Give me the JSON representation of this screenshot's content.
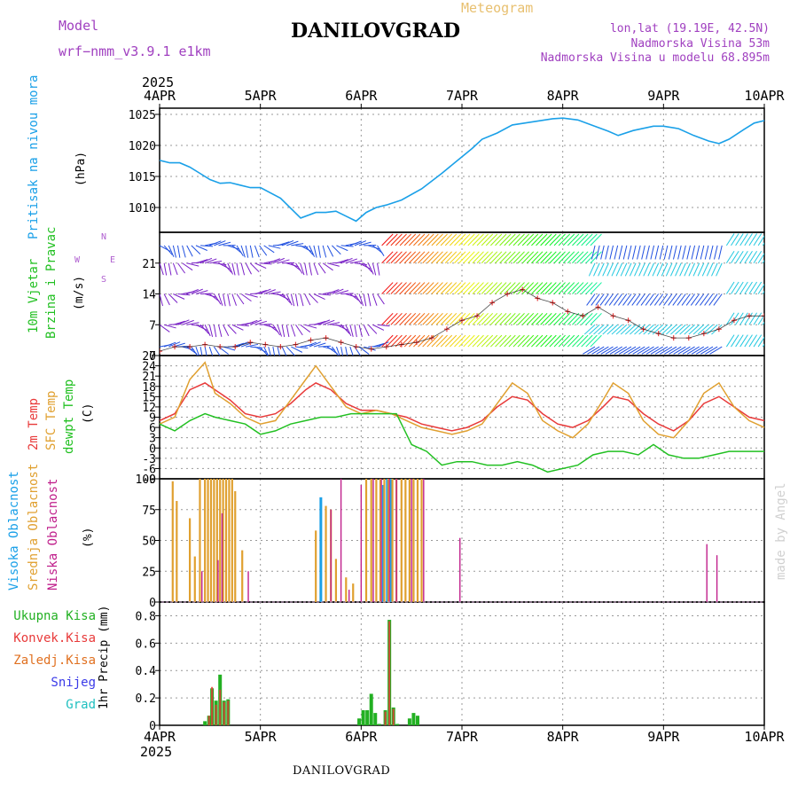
{
  "header": {
    "model_label": "Model",
    "model_name": "wrf−nmm_v3.9.1 e1km",
    "title": "DANILOVGRAD",
    "chart_kind": "Meteogram",
    "coords": "lon,lat (19.19E, 42.5N)",
    "elevation": "Nadmorska Visina 53m",
    "model_elevation": "Nadmorska Visina u modelu 68.895m",
    "year_top": "2025",
    "year_bottom": "2025",
    "footer_title": "DANILOVGRAD",
    "signature": "made by Angel"
  },
  "colors": {
    "pressure": "#1aa0e8",
    "t2m": "#e83a3a",
    "tsfc": "#e0a030",
    "dewpt": "#22c022",
    "high_cloud": "#1aa0e8",
    "mid_cloud": "#e0a030",
    "low_cloud": "#c0208c",
    "model": "#a040c0",
    "total_precip": "#22b022",
    "conv_precip": "#e83a3a",
    "frz_precip": "#e07020",
    "snow": "#3a3ae8",
    "graupel": "#20c0c0",
    "wind_low": "#7a20c8",
    "wind_mid": "#2050e0",
    "wind_high": "#20c8e0"
  },
  "panels": {
    "pressure": {
      "label": "Pritisak na nivou mora",
      "unit": "(hPa)"
    },
    "wind": {
      "label1": "10m Vjetar",
      "label2": "Brzina i Pravac",
      "unit": "(m/s)",
      "compass_n": "N",
      "compass_s": "S",
      "compass_w": "W",
      "compass_e": "E"
    },
    "temp": {
      "label1": "2m Temp",
      "label2": "SFC Temp",
      "label3": "dewpt Temp",
      "unit": "(C)"
    },
    "cloud": {
      "label1": "Visoka Oblacnost",
      "label2": "Srednja Oblacnost",
      "label3": "Niska Oblacnost",
      "unit": "(%)"
    },
    "precip": {
      "unit": "1hr Precip (mm)",
      "legend": [
        "Ukupna Kisa",
        "Konvek.Kisa",
        "Zaledj.Kisa",
        "Snijeg",
        "Grad"
      ]
    }
  },
  "chart_data": [
    {
      "type": "line",
      "title": "Pritisak na nivou mora",
      "ylabel": "(hPa)",
      "x_ticks": [
        "4APR",
        "5APR",
        "6APR",
        "7APR",
        "8APR",
        "9APR",
        "10APR"
      ],
      "ylim": [
        1006,
        1026
      ],
      "y_ticks": [
        1010,
        1015,
        1020,
        1025
      ],
      "grid": true,
      "series": [
        {
          "x": [
            0,
            0.1,
            0.2,
            0.3,
            0.4,
            0.5,
            0.6,
            0.7,
            0.8,
            0.9,
            1.0,
            1.2,
            1.4,
            1.55,
            1.65,
            1.75,
            1.85,
            1.95,
            2.05,
            2.15,
            2.25,
            2.4,
            2.6,
            2.8,
            2.95,
            3.1,
            3.2,
            3.35,
            3.5,
            3.7,
            3.9,
            4.0,
            4.15,
            4.3,
            4.45,
            4.55,
            4.7,
            4.9,
            5.0,
            5.15,
            5.3,
            5.45,
            5.55,
            5.65,
            5.8,
            5.9,
            6.0
          ],
          "values": [
            1017.6,
            1017.2,
            1017.2,
            1016.5,
            1015.5,
            1014.5,
            1013.9,
            1014.0,
            1013.6,
            1013.2,
            1013.2,
            1011.5,
            1008.3,
            1009.2,
            1009.2,
            1009.4,
            1008.6,
            1007.8,
            1009.2,
            1010.0,
            1010.4,
            1011.2,
            1013.0,
            1015.5,
            1017.5,
            1019.5,
            1021.0,
            1022.0,
            1023.3,
            1023.8,
            1024.3,
            1024.4,
            1024.1,
            1023.2,
            1022.3,
            1021.6,
            1022.4,
            1023.1,
            1023.1,
            1022.7,
            1021.6,
            1020.7,
            1020.3,
            1021.0,
            1022.6,
            1023.6,
            1024.0
          ]
        }
      ]
    },
    {
      "type": "scatter",
      "title": "10m Vjetar Brzina i Pravac",
      "ylabel": "(m/s)",
      "x_ticks": [
        "4APR",
        "5APR",
        "6APR",
        "7APR",
        "8APR",
        "9APR",
        "10APR"
      ],
      "ylim": [
        0,
        28
      ],
      "y_ticks": [
        0,
        7,
        14,
        21
      ],
      "grid": true,
      "series": [
        {
          "name": "wind speed",
          "x": [
            0,
            0.15,
            0.3,
            0.45,
            0.6,
            0.75,
            0.9,
            1.05,
            1.2,
            1.35,
            1.5,
            1.65,
            1.8,
            1.95,
            2.1,
            2.25,
            2.4,
            2.55,
            2.7,
            2.85,
            3.0,
            3.15,
            3.3,
            3.45,
            3.6,
            3.75,
            3.9,
            4.05,
            4.2,
            4.35,
            4.5,
            4.65,
            4.8,
            4.95,
            5.1,
            5.25,
            5.4,
            5.55,
            5.7,
            5.85,
            6.0
          ],
          "values": [
            1,
            2,
            2,
            2.5,
            2,
            2,
            3,
            2.5,
            2,
            2.5,
            3.5,
            4,
            3,
            2,
            1.5,
            2,
            2.5,
            3,
            4,
            6,
            8,
            9,
            12,
            14,
            15,
            13,
            12,
            10,
            9,
            11,
            9,
            8,
            6,
            5,
            4,
            4,
            5,
            6,
            8,
            9,
            9
          ]
        }
      ]
    },
    {
      "type": "line",
      "title": "2m Temp / SFC Temp / dewpt Temp",
      "ylabel": "(C)",
      "x_ticks": [
        "4APR",
        "5APR",
        "6APR",
        "7APR",
        "8APR",
        "9APR",
        "10APR"
      ],
      "ylim": [
        -9,
        27
      ],
      "y_ticks": [
        -9,
        -6,
        -3,
        0,
        3,
        6,
        9,
        12,
        15,
        18,
        21,
        24,
        27
      ],
      "grid": true,
      "series": [
        {
          "name": "2m Temp",
          "x": [
            0,
            0.15,
            0.3,
            0.45,
            0.55,
            0.7,
            0.85,
            1.0,
            1.15,
            1.3,
            1.45,
            1.55,
            1.7,
            1.85,
            2.0,
            2.15,
            2.3,
            2.45,
            2.6,
            2.75,
            2.9,
            3.05,
            3.2,
            3.35,
            3.5,
            3.65,
            3.8,
            3.95,
            4.1,
            4.25,
            4.4,
            4.5,
            4.65,
            4.8,
            4.95,
            5.1,
            5.25,
            5.4,
            5.55,
            5.7,
            5.85,
            6.0
          ],
          "values": [
            8,
            10,
            17,
            19,
            17,
            14,
            10,
            9,
            10,
            13,
            17,
            19,
            17,
            13,
            11,
            11,
            10,
            9,
            7,
            6,
            5,
            6,
            8,
            12,
            15,
            14,
            10,
            7,
            6,
            8,
            12,
            15,
            14,
            10,
            7,
            5,
            8,
            13,
            15,
            12,
            9,
            8
          ]
        },
        {
          "name": "SFC Temp",
          "x": [
            0,
            0.15,
            0.3,
            0.45,
            0.55,
            0.7,
            0.85,
            1.0,
            1.15,
            1.3,
            1.45,
            1.55,
            1.7,
            1.85,
            2.0,
            2.15,
            2.3,
            2.45,
            2.6,
            2.75,
            2.9,
            3.05,
            3.2,
            3.35,
            3.5,
            3.65,
            3.8,
            3.95,
            4.1,
            4.25,
            4.4,
            4.5,
            4.65,
            4.8,
            4.95,
            5.1,
            5.25,
            5.4,
            5.55,
            5.7,
            5.85,
            6.0
          ],
          "values": [
            7,
            9,
            20,
            25,
            16,
            13,
            9,
            7,
            8,
            14,
            20,
            24,
            18,
            12,
            10,
            11,
            10,
            8,
            6,
            5,
            4,
            5,
            7,
            13,
            19,
            16,
            8,
            5,
            3,
            7,
            14,
            19,
            16,
            8,
            4,
            3,
            8,
            16,
            19,
            12,
            8,
            6
          ]
        },
        {
          "name": "dewpt Temp",
          "x": [
            0,
            0.15,
            0.3,
            0.45,
            0.55,
            0.7,
            0.85,
            1.0,
            1.15,
            1.3,
            1.45,
            1.6,
            1.75,
            1.9,
            2.05,
            2.2,
            2.35,
            2.5,
            2.65,
            2.8,
            2.95,
            3.1,
            3.25,
            3.4,
            3.55,
            3.7,
            3.85,
            4.0,
            4.15,
            4.3,
            4.45,
            4.6,
            4.75,
            4.9,
            5.05,
            5.2,
            5.35,
            5.5,
            5.65,
            5.8,
            6.0
          ],
          "values": [
            7,
            5,
            8,
            10,
            9,
            8,
            7,
            4,
            5,
            7,
            8,
            9,
            9,
            10,
            10,
            10,
            10,
            1,
            -1,
            -5,
            -4,
            -4,
            -5,
            -5,
            -4,
            -5,
            -7,
            -6,
            -5,
            -2,
            -1,
            -1,
            -2,
            1,
            -2,
            -3,
            -3,
            -2,
            -1,
            -1,
            -1
          ]
        }
      ]
    },
    {
      "type": "bar",
      "title": "Visoka / Srednja / Niska Oblacnost",
      "ylabel": "(%)",
      "x_ticks": [
        "4APR",
        "5APR",
        "6APR",
        "7APR",
        "8APR",
        "9APR",
        "10APR"
      ],
      "ylim": [
        0,
        100
      ],
      "y_ticks": [
        0,
        25,
        50,
        75,
        100
      ],
      "grid": true,
      "series": [
        {
          "name": "Visoka Oblacnost",
          "x": [
            1.6,
            2.22,
            2.26,
            2.3
          ],
          "values": [
            85,
            95,
            100,
            100
          ]
        },
        {
          "name": "Srednja Oblacnost",
          "x": [
            0.13,
            0.17,
            0.3,
            0.35,
            0.4,
            0.45,
            0.48,
            0.51,
            0.54,
            0.57,
            0.6,
            0.63,
            0.66,
            0.69,
            0.72,
            0.75,
            0.82,
            0.86,
            1.55,
            1.65,
            1.7,
            1.75,
            1.85,
            1.92,
            2.05,
            2.1,
            2.15,
            2.19,
            2.23,
            2.27,
            2.31,
            2.35,
            2.4,
            2.44,
            2.48,
            2.52,
            2.56,
            2.6
          ],
          "values": [
            98,
            82,
            68,
            37,
            100,
            100,
            100,
            100,
            100,
            100,
            100,
            100,
            100,
            100,
            100,
            90,
            42,
            4,
            58,
            78,
            75,
            35,
            20,
            15,
            100,
            100,
            100,
            100,
            100,
            100,
            100,
            100,
            100,
            100,
            100,
            100,
            100,
            100
          ]
        },
        {
          "name": "Niska Oblacnost",
          "x": [
            0.42,
            0.58,
            0.62,
            0.88,
            1.7,
            1.8,
            1.88,
            2.0,
            2.12,
            2.2,
            2.28,
            2.35,
            2.5,
            2.62,
            2.65,
            2.98,
            3.52,
            5.38,
            5.43,
            5.53
          ],
          "values": [
            25,
            34,
            72,
            25,
            75,
            100,
            10,
            95,
            100,
            100,
            100,
            100,
            100,
            100,
            4,
            52,
            4,
            8,
            47,
            38
          ]
        }
      ]
    },
    {
      "type": "bar",
      "title": "1hr Precip",
      "ylabel": "1hr Precip (mm)",
      "x_ticks": [
        "4APR",
        "5APR",
        "6APR",
        "7APR",
        "8APR",
        "9APR",
        "10APR"
      ],
      "ylim": [
        0,
        0.9
      ],
      "y_ticks": [
        0,
        0.2,
        0.4,
        0.6,
        0.8
      ],
      "grid": true,
      "series": [
        {
          "name": "Ukupna Kisa",
          "x": [
            0.45,
            0.49,
            0.52,
            0.56,
            0.6,
            0.64,
            0.68,
            1.98,
            2.02,
            2.06,
            2.1,
            2.14,
            2.18,
            2.24,
            2.28,
            2.32,
            2.36,
            2.48,
            2.52,
            2.56
          ],
          "values": [
            0.03,
            0.07,
            0.27,
            0.18,
            0.37,
            0.18,
            0.19,
            0.05,
            0.11,
            0.11,
            0.23,
            0.09,
            0.01,
            0.11,
            0.77,
            0.13,
            0.01,
            0.05,
            0.09,
            0.07
          ]
        },
        {
          "name": "Konvek.Kisa",
          "x": [
            0.49,
            0.52,
            0.56,
            0.6,
            0.64,
            0.68,
            2.24,
            2.28,
            2.32
          ],
          "values": [
            0.07,
            0.28,
            0.15,
            0.26,
            0.17,
            0.18,
            0.1,
            0.76,
            0.12
          ]
        }
      ]
    }
  ]
}
